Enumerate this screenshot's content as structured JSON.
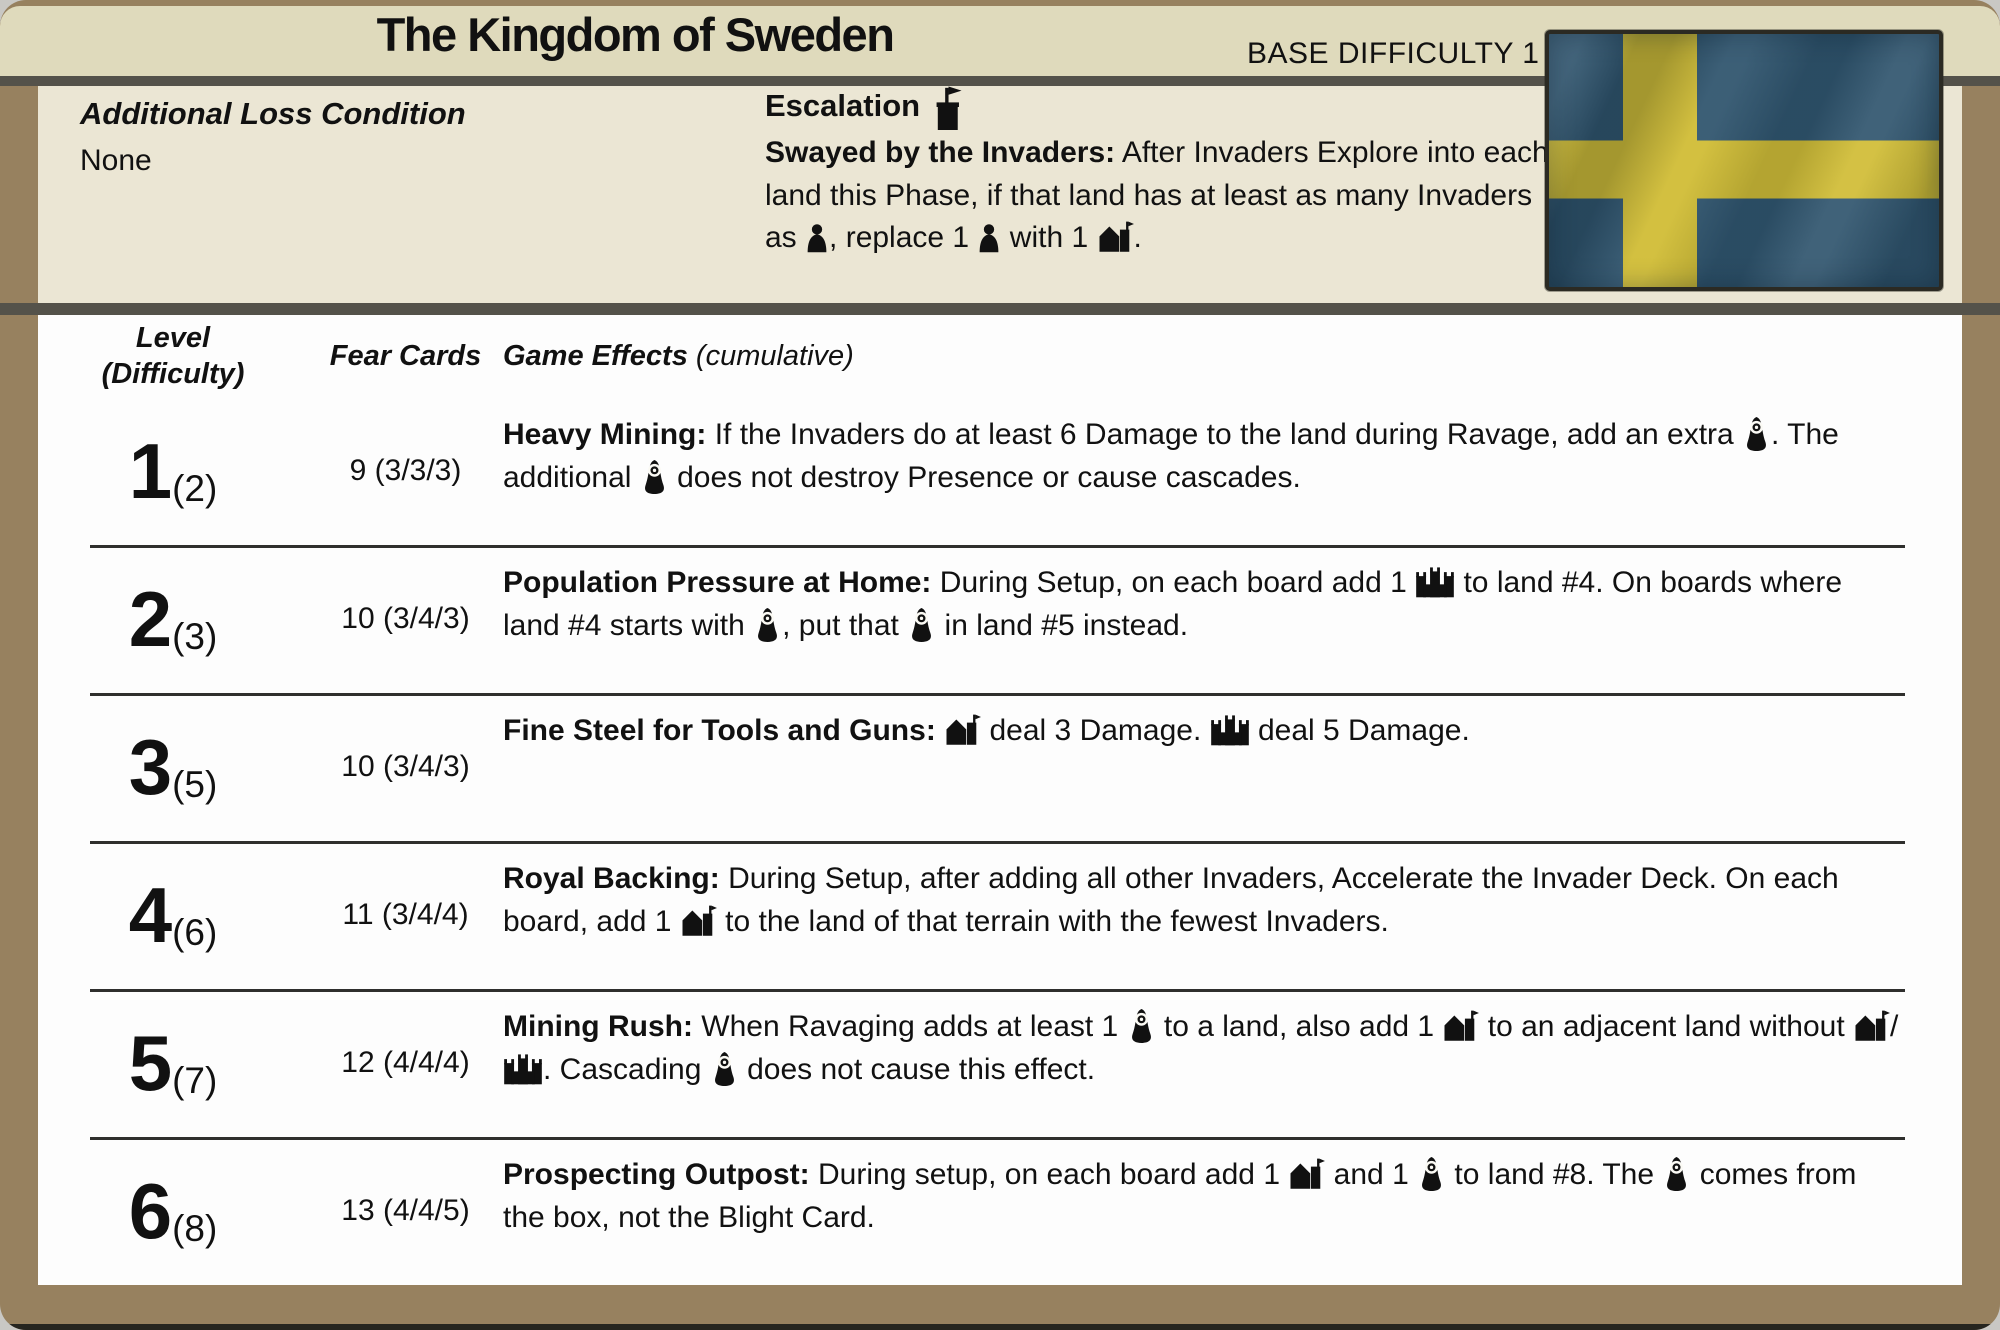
{
  "header": {
    "title": "The Kingdom of Sweden",
    "base_difficulty": "BASE DIFFICULTY 1"
  },
  "info": {
    "loss_condition_heading": "Additional Loss Condition",
    "loss_condition_value": "None",
    "escalation_heading": "Escalation",
    "escalation_segments": [
      {
        "bold": "Swayed by the Invaders:"
      },
      {
        "text": " After Invaders Explore into each land this Phase, if that land has at least as many Invaders as "
      },
      {
        "icon": "explorer-icon"
      },
      {
        "text": ", replace 1 "
      },
      {
        "icon": "explorer-icon"
      },
      {
        "text": " with 1 "
      },
      {
        "icon": "town-icon"
      },
      {
        "text": "."
      }
    ]
  },
  "flag": {
    "name": "sweden-flag",
    "blue": "#30556e",
    "yellow": "#d0bc34"
  },
  "table": {
    "headers": {
      "level_line1": "Level",
      "level_line2": "(Difficulty)",
      "fear": "Fear Cards",
      "effects": "Game Effects",
      "effects_note": "(cumulative)"
    },
    "rows": [
      {
        "level": "1",
        "difficulty": "(2)",
        "fear_cards": "9 (3/3/3)",
        "effect_segments": [
          {
            "bold": "Heavy Mining:"
          },
          {
            "text": " If the Invaders do at least 6 Damage to the land during Ravage, add an extra "
          },
          {
            "icon": "blight-icon"
          },
          {
            "text": ". The additional "
          },
          {
            "icon": "blight-icon"
          },
          {
            "text": " does not destroy Presence or cause cascades."
          }
        ]
      },
      {
        "level": "2",
        "difficulty": "(3)",
        "fear_cards": "10 (3/4/3)",
        "effect_segments": [
          {
            "bold": "Population Pressure at Home:"
          },
          {
            "text": " During Setup, on each board add 1 "
          },
          {
            "icon": "city-icon"
          },
          {
            "text": " to land #4. On boards where land #4 starts with "
          },
          {
            "icon": "blight-icon"
          },
          {
            "text": ", put that "
          },
          {
            "icon": "blight-icon"
          },
          {
            "text": " in land #5 instead."
          }
        ]
      },
      {
        "level": "3",
        "difficulty": "(5)",
        "fear_cards": "10 (3/4/3)",
        "effect_segments": [
          {
            "bold": "Fine Steel for Tools and Guns:"
          },
          {
            "text": " "
          },
          {
            "icon": "town-icon"
          },
          {
            "text": " deal 3 Damage. "
          },
          {
            "icon": "city-icon"
          },
          {
            "text": " deal 5 Damage."
          }
        ]
      },
      {
        "level": "4",
        "difficulty": "(6)",
        "fear_cards": "11 (3/4/4)",
        "effect_segments": [
          {
            "bold": "Royal Backing:"
          },
          {
            "text": " During Setup, after adding all other Invaders, Accelerate the Invader Deck. On each board, add 1 "
          },
          {
            "icon": "town-icon"
          },
          {
            "text": " to the land of that terrain with the fewest Invaders."
          }
        ]
      },
      {
        "level": "5",
        "difficulty": "(7)",
        "fear_cards": "12 (4/4/4)",
        "effect_segments": [
          {
            "bold": "Mining Rush:"
          },
          {
            "text": " When Ravaging adds at least 1 "
          },
          {
            "icon": "blight-icon"
          },
          {
            "text": " to a land, also add 1 "
          },
          {
            "icon": "town-icon"
          },
          {
            "text": " to an adjacent land without "
          },
          {
            "icon": "town-icon"
          },
          {
            "text": "/"
          },
          {
            "icon": "city-icon"
          },
          {
            "text": ". Cascading "
          },
          {
            "icon": "blight-icon"
          },
          {
            "text": " does not cause this effect."
          }
        ]
      },
      {
        "level": "6",
        "difficulty": "(8)",
        "fear_cards": "13 (4/4/5)",
        "effect_segments": [
          {
            "bold": "Prospecting Outpost:"
          },
          {
            "text": " During setup, on each board add 1 "
          },
          {
            "icon": "town-icon"
          },
          {
            "text": " and 1 "
          },
          {
            "icon": "blight-icon"
          },
          {
            "text": " to land #8. The "
          },
          {
            "icon": "blight-icon"
          },
          {
            "text": " comes from the box, not the Blight Card."
          }
        ]
      }
    ]
  },
  "icons_used": [
    "escalation-flag-icon",
    "explorer-icon",
    "town-icon",
    "city-icon",
    "blight-icon",
    "sweden-flag"
  ],
  "colors": {
    "frame_brown": "#97815f",
    "header_band": "#dfdabc",
    "info_background": "#ebe6d4",
    "divider": "#54524a",
    "table_background": "#fdfdfd",
    "text": "#111111"
  }
}
